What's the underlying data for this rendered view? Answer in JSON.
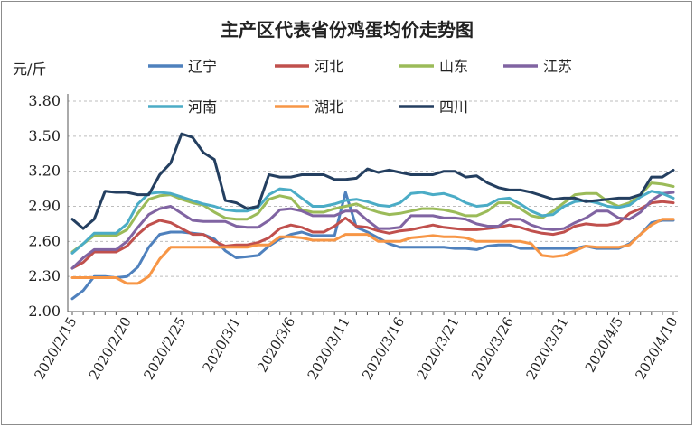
{
  "chart_data": {
    "type": "line",
    "title": "主产区代表省份鸡蛋均价走势图",
    "ylabel": "元/斤",
    "ylim": [
      2.0,
      3.8
    ],
    "yticks": [
      "2.00",
      "2.30",
      "2.60",
      "2.90",
      "3.20",
      "3.50",
      "3.80"
    ],
    "grid": true,
    "legend_position": "top",
    "x": [
      "2020/2/15",
      "2020/2/16",
      "2020/2/17",
      "2020/2/18",
      "2020/2/19",
      "2020/2/20",
      "2020/2/21",
      "2020/2/22",
      "2020/2/23",
      "2020/2/24",
      "2020/2/25",
      "2020/2/26",
      "2020/2/27",
      "2020/2/28",
      "2020/2/29",
      "2020/3/1",
      "2020/3/2",
      "2020/3/3",
      "2020/3/4",
      "2020/3/5",
      "2020/3/6",
      "2020/3/7",
      "2020/3/8",
      "2020/3/9",
      "2020/3/10",
      "2020/3/11",
      "2020/3/12",
      "2020/3/13",
      "2020/3/14",
      "2020/3/15",
      "2020/3/16",
      "2020/3/17",
      "2020/3/18",
      "2020/3/19",
      "2020/3/20",
      "2020/3/21",
      "2020/3/22",
      "2020/3/23",
      "2020/3/24",
      "2020/3/25",
      "2020/3/26",
      "2020/3/27",
      "2020/3/28",
      "2020/3/29",
      "2020/3/30",
      "2020/3/31",
      "2020/4/1",
      "2020/4/2",
      "2020/4/3",
      "2020/4/4",
      "2020/4/5",
      "2020/4/6",
      "2020/4/7",
      "2020/4/8",
      "2020/4/9",
      "2020/4/10"
    ],
    "xtick_labels": [
      "2020/2/15",
      "2020/2/20",
      "2020/2/25",
      "2020/3/1",
      "2020/3/6",
      "2020/3/11",
      "2020/3/16",
      "2020/3/21",
      "2020/3/26",
      "2020/3/31",
      "2020/4/5",
      "2020/4/10"
    ],
    "series": [
      {
        "name": "辽宁",
        "color": "#4f81bd",
        "values": [
          2.11,
          2.18,
          2.3,
          2.3,
          2.29,
          2.3,
          2.38,
          2.55,
          2.66,
          2.68,
          2.68,
          2.67,
          2.66,
          2.62,
          2.52,
          2.46,
          2.47,
          2.48,
          2.56,
          2.62,
          2.66,
          2.68,
          2.65,
          2.65,
          2.65,
          3.02,
          2.72,
          2.68,
          2.63,
          2.58,
          2.55,
          2.55,
          2.55,
          2.55,
          2.55,
          2.54,
          2.54,
          2.53,
          2.56,
          2.57,
          2.57,
          2.54,
          2.54,
          2.54,
          2.54,
          2.54,
          2.54,
          2.56,
          2.54,
          2.54,
          2.54,
          2.58,
          2.66,
          2.76,
          2.78,
          2.78
        ]
      },
      {
        "name": "河北",
        "color": "#c0504d",
        "values": [
          2.37,
          2.42,
          2.51,
          2.51,
          2.51,
          2.56,
          2.66,
          2.74,
          2.78,
          2.76,
          2.71,
          2.66,
          2.66,
          2.6,
          2.56,
          2.57,
          2.57,
          2.59,
          2.63,
          2.71,
          2.74,
          2.72,
          2.68,
          2.68,
          2.73,
          2.8,
          2.73,
          2.72,
          2.69,
          2.67,
          2.69,
          2.7,
          2.72,
          2.74,
          2.72,
          2.71,
          2.7,
          2.7,
          2.71,
          2.72,
          2.74,
          2.72,
          2.69,
          2.67,
          2.66,
          2.68,
          2.73,
          2.75,
          2.74,
          2.74,
          2.76,
          2.84,
          2.88,
          2.93,
          2.94,
          2.93
        ]
      },
      {
        "name": "山东",
        "color": "#9bbb59",
        "values": [
          2.51,
          2.58,
          2.65,
          2.65,
          2.65,
          2.7,
          2.84,
          2.96,
          2.99,
          3.0,
          2.96,
          2.93,
          2.91,
          2.85,
          2.8,
          2.79,
          2.79,
          2.84,
          2.96,
          2.99,
          2.97,
          2.87,
          2.85,
          2.85,
          2.88,
          2.9,
          2.92,
          2.88,
          2.85,
          2.83,
          2.84,
          2.86,
          2.88,
          2.88,
          2.87,
          2.85,
          2.82,
          2.82,
          2.86,
          2.93,
          2.93,
          2.88,
          2.82,
          2.8,
          2.86,
          2.93,
          3.0,
          3.01,
          3.01,
          2.94,
          2.9,
          2.93,
          3.0,
          3.1,
          3.09,
          3.07
        ]
      },
      {
        "name": "江苏",
        "color": "#8064a2",
        "values": [
          2.37,
          2.46,
          2.53,
          2.53,
          2.53,
          2.6,
          2.72,
          2.83,
          2.88,
          2.9,
          2.84,
          2.78,
          2.77,
          2.77,
          2.77,
          2.73,
          2.72,
          2.72,
          2.78,
          2.87,
          2.88,
          2.86,
          2.82,
          2.82,
          2.82,
          2.86,
          2.86,
          2.78,
          2.71,
          2.71,
          2.72,
          2.82,
          2.82,
          2.82,
          2.8,
          2.8,
          2.79,
          2.75,
          2.73,
          2.73,
          2.79,
          2.79,
          2.74,
          2.71,
          2.7,
          2.71,
          2.76,
          2.8,
          2.86,
          2.86,
          2.8,
          2.79,
          2.85,
          2.95,
          3.01,
          3.02
        ]
      },
      {
        "name": "河南",
        "color": "#4bacc6",
        "values": [
          2.5,
          2.58,
          2.67,
          2.67,
          2.67,
          2.75,
          2.92,
          3.01,
          3.02,
          3.01,
          2.98,
          2.95,
          2.92,
          2.9,
          2.87,
          2.86,
          2.86,
          2.89,
          3.0,
          3.05,
          3.04,
          2.97,
          2.9,
          2.9,
          2.92,
          2.95,
          2.96,
          2.94,
          2.91,
          2.9,
          2.93,
          3.01,
          3.02,
          3.0,
          3.01,
          2.98,
          2.93,
          2.9,
          2.91,
          2.96,
          2.97,
          2.92,
          2.86,
          2.82,
          2.83,
          2.9,
          2.94,
          2.95,
          2.93,
          2.9,
          2.89,
          2.91,
          2.98,
          3.03,
          3.01,
          2.97
        ]
      },
      {
        "name": "湖北",
        "color": "#f79646",
        "values": [
          2.29,
          2.29,
          2.29,
          2.29,
          2.29,
          2.24,
          2.24,
          2.3,
          2.45,
          2.55,
          2.55,
          2.55,
          2.55,
          2.55,
          2.55,
          2.55,
          2.55,
          2.57,
          2.57,
          2.64,
          2.64,
          2.63,
          2.61,
          2.61,
          2.61,
          2.66,
          2.66,
          2.66,
          2.6,
          2.6,
          2.6,
          2.63,
          2.64,
          2.65,
          2.64,
          2.64,
          2.63,
          2.6,
          2.6,
          2.6,
          2.6,
          2.6,
          2.58,
          2.48,
          2.47,
          2.48,
          2.52,
          2.56,
          2.55,
          2.55,
          2.55,
          2.57,
          2.66,
          2.74,
          2.79,
          2.79
        ]
      },
      {
        "name": "四川",
        "color": "#243f60",
        "values": [
          2.79,
          2.71,
          2.79,
          3.03,
          3.02,
          3.02,
          3.0,
          3.0,
          3.17,
          3.27,
          3.52,
          3.49,
          3.36,
          3.3,
          2.95,
          2.93,
          2.88,
          2.9,
          3.17,
          3.15,
          3.15,
          3.17,
          3.17,
          3.17,
          3.13,
          3.13,
          3.14,
          3.22,
          3.19,
          3.21,
          3.19,
          3.17,
          3.17,
          3.17,
          3.2,
          3.2,
          3.15,
          3.16,
          3.1,
          3.06,
          3.04,
          3.04,
          3.02,
          2.99,
          2.96,
          2.97,
          2.97,
          2.94,
          2.95,
          2.96,
          2.97,
          2.97,
          3.0,
          3.15,
          3.15,
          3.21
        ]
      }
    ]
  }
}
